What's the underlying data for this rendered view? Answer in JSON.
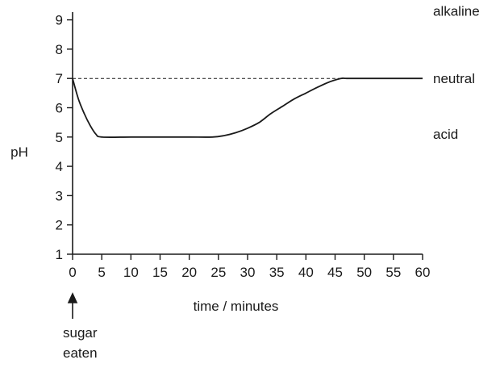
{
  "chart_data": {
    "type": "line",
    "title": "",
    "xlabel": "time / minutes",
    "ylabel": "pH",
    "xlim": [
      0,
      60
    ],
    "ylim": [
      1,
      9
    ],
    "xticks": [
      0,
      5,
      10,
      15,
      20,
      25,
      30,
      35,
      40,
      45,
      50,
      55,
      60
    ],
    "yticks": [
      1,
      2,
      3,
      4,
      5,
      6,
      7,
      8,
      9
    ],
    "grid": false,
    "series": [
      {
        "color": "#1a1a1a",
        "x": [
          0,
          1,
          2,
          3,
          4,
          5,
          10,
          15,
          20,
          24,
          26,
          28,
          30,
          32,
          34,
          36,
          38,
          40,
          42,
          44,
          46,
          47,
          50,
          55,
          60
        ],
        "y": [
          7.0,
          6.3,
          5.8,
          5.4,
          5.1,
          5.0,
          5.0,
          5.0,
          5.0,
          5.0,
          5.05,
          5.15,
          5.3,
          5.5,
          5.8,
          6.05,
          6.3,
          6.5,
          6.7,
          6.88,
          7.0,
          7.0,
          7.0,
          7.0,
          7.0
        ]
      }
    ],
    "reference_line": {
      "y": 7,
      "style": "dashed",
      "x_range": [
        0,
        47
      ]
    },
    "region_labels": [
      {
        "text": "alkaline",
        "y": 9.3
      },
      {
        "text": "neutral",
        "y": 7.0
      },
      {
        "text": "acid",
        "y": 5.1
      }
    ],
    "annotation": {
      "lines": [
        "sugar",
        "eaten"
      ],
      "x": 0
    }
  }
}
